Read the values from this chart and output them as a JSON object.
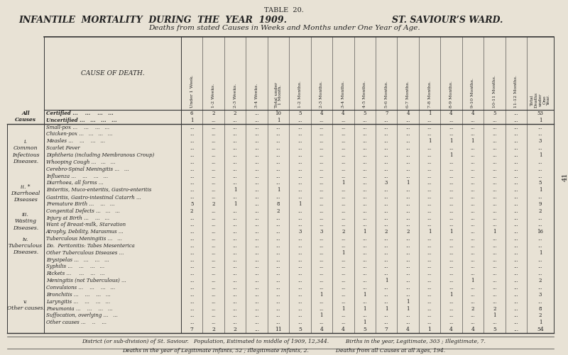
{
  "title1": "TABLE  20.",
  "title2": "INFANTILE  MORTALITY  DURING  THE  YEAR  1909.",
  "title3": "ST. SAVIOUR’S WARD.",
  "title4": "Deaths from stated Causes in Weeks and Months under One Year of Age.",
  "col_headers": [
    "Under 1 Week.",
    "1-2 Weeks.",
    "2-3 Weeks.",
    "3-4 Weeks.",
    "Total under\n1 Month.",
    "1-2 Months.",
    "2-3 Months.",
    "3-4 Months.",
    "4-5 Months.",
    "5-6 Months.",
    "6-7 Months.",
    "7-8 Months.",
    "8-9 Months.",
    "9-10 Months.",
    "10-11 Months.",
    "11-12 Months.",
    "Total\nDeaths\nunder\nOne\nYear."
  ],
  "bg_color": "#e8e2d5",
  "text_color": "#222222",
  "row_groups": [
    {
      "group_label": "All\nCauses",
      "rows": [
        {
          "label": "Certified ...    ...    ...   ...",
          "values": [
            "6",
            "2",
            "2",
            "...",
            "10",
            "5",
            "4",
            "4",
            "5",
            "7",
            "4",
            "1",
            "4",
            "4",
            "5",
            "...",
            "53"
          ]
        },
        {
          "label": "Uncertified ...   ...   ...   ...",
          "values": [
            "1",
            "...",
            "...",
            "...",
            "1",
            "...",
            "...",
            "...",
            "...",
            "...",
            "...",
            "...",
            "...",
            "...",
            "...",
            "...",
            "1"
          ]
        }
      ],
      "bold_group": true,
      "bold_rows": true
    },
    {
      "group_label": "i.\nCommon\nInfectious\nDiseases.",
      "rows": [
        {
          "label": "Small-pox ...    ...    ...   ...",
          "values": [
            "...",
            "...",
            "...",
            "...",
            "...",
            "...",
            "...",
            "...",
            "...",
            "...",
            "...",
            "...",
            "...",
            "...",
            "...",
            "...",
            "..."
          ]
        },
        {
          "label": "Chicken-pox ...   ...   ...   ...",
          "values": [
            "...",
            "...",
            "...",
            "...",
            "...",
            "...",
            "...",
            "...",
            "...",
            "...",
            "...",
            "...",
            "...",
            "...",
            "...",
            "...",
            "..."
          ]
        },
        {
          "label": "Measles ...    ...    ...   ...",
          "values": [
            "...",
            "...",
            "...",
            "...",
            "...",
            "...",
            "...",
            "...",
            "...",
            "...",
            "...",
            "1",
            "1",
            "1",
            "...",
            "...",
            "3"
          ]
        },
        {
          "label": "Scarlet Fever",
          "values": [
            "...",
            "...",
            "...",
            "...",
            "...",
            "...",
            "...",
            "...",
            "...",
            "...",
            "...",
            "...",
            "...",
            "...",
            "...",
            "...",
            "..."
          ]
        },
        {
          "label": "Diphtheria (including Membranous Croup)",
          "values": [
            "...",
            "...",
            "...",
            "...",
            "...",
            "...",
            "...",
            "...",
            "...",
            "...",
            "...",
            "...",
            "1",
            "...",
            "...",
            "...",
            "1"
          ]
        },
        {
          "label": "Whooping Cough ...   ...   ...",
          "values": [
            "...",
            "...",
            "...",
            "...",
            "...",
            "...",
            "...",
            "...",
            "...",
            "...",
            "...",
            "...",
            "...",
            "...",
            "...",
            "...",
            "..."
          ]
        },
        {
          "label": "Cerebro-Spinal Meningitis ...   ...",
          "values": [
            "...",
            "...",
            "...",
            "...",
            "...",
            "...",
            "...",
            "...",
            "...",
            "...",
            "...",
            "...",
            "...",
            "...",
            "...",
            "...",
            "..."
          ]
        },
        {
          "label": "Influenza ...    ...    ...   ...",
          "values": [
            "...",
            "...",
            "...",
            "...",
            "...",
            "...",
            "...",
            "...",
            "...",
            "...",
            "...",
            "...",
            "...",
            "...",
            "...",
            "...",
            "..."
          ]
        }
      ],
      "bold_group": false,
      "bold_rows": false
    },
    {
      "group_label": "ii. *\nDiarrhoeal\nDiseases",
      "rows": [
        {
          "label": "Diarrhoea, all forms ...",
          "values": [
            "...",
            "...",
            "...",
            "...",
            "...",
            "...",
            "...",
            "1",
            "...",
            "3",
            "1",
            "...",
            "...",
            "...",
            "...",
            "...",
            "5"
          ]
        },
        {
          "label": "Enteritis, Muco-enteritis, Gastro-enteritis",
          "values": [
            "...",
            "...",
            "1",
            "...",
            "1",
            "...",
            "...",
            "...",
            "...",
            "...",
            "...",
            "...",
            "...",
            "...",
            "...",
            "...",
            "1"
          ]
        },
        {
          "label": "Gastritis, Gastro-intestinal Catarrh ...",
          "values": [
            "...",
            "...",
            "...",
            "...",
            "...",
            "...",
            "...",
            "...",
            "...",
            "...",
            "...",
            "...",
            "...",
            "...",
            "...",
            "...",
            "..."
          ]
        },
        {
          "label": "Premature Birth ...    ...   ...",
          "values": [
            "5",
            "2",
            "1",
            "...",
            "8",
            "1",
            "...",
            "...",
            "...",
            "...",
            "...",
            "...",
            "...",
            "...",
            "...",
            "...",
            "9"
          ]
        }
      ],
      "bold_group": false,
      "bold_rows": false
    },
    {
      "group_label": "iii.\nWasting\nDiseases.",
      "rows": [
        {
          "label": "Congenital Defects ...   ...   ...",
          "values": [
            "2",
            "...",
            "...",
            "...",
            "2",
            "...",
            "...",
            "...",
            "...",
            "...",
            "...",
            "...",
            "...",
            "...",
            "...",
            "...",
            "2"
          ]
        },
        {
          "label": "Injury at Birth ...    ...   ...",
          "values": [
            "...",
            "...",
            "...",
            "...",
            "...",
            "...",
            "...",
            "...",
            "...",
            "...",
            "...",
            "...",
            "...",
            "...",
            "...",
            "...",
            "..."
          ]
        },
        {
          "label": "Want of Breast-milk, Starvation",
          "values": [
            "...",
            "...",
            "...",
            "...",
            "...",
            "...",
            "...",
            "...",
            "...",
            "...",
            "...",
            "...",
            "...",
            "...",
            "...",
            "...",
            "..."
          ]
        },
        {
          "label": "Atrophy, Debility, Marasmus ...",
          "values": [
            "...",
            "...",
            "...",
            "...",
            "...",
            "3",
            "3",
            "2",
            "1",
            "2",
            "2",
            "1",
            "1",
            "...",
            "1",
            "...",
            "16"
          ]
        }
      ],
      "bold_group": false,
      "bold_rows": false
    },
    {
      "group_label": "iv.\nTuberculous\nDiseases.",
      "rows": [
        {
          "label": "Tuberculous Meningitis ...   ...",
          "values": [
            "...",
            "...",
            "...",
            "...",
            "...",
            "...",
            "...",
            "...",
            "...",
            "...",
            "...",
            "...",
            "...",
            "...",
            "...",
            "...",
            "..."
          ]
        },
        {
          "label": "Do.  Peritonitis: Tabes Mesenterica",
          "values": [
            "...",
            "...",
            "...",
            "...",
            "...",
            "...",
            "...",
            "...",
            "...",
            "...",
            "...",
            "...",
            "...",
            "...",
            "...",
            "...",
            "..."
          ]
        },
        {
          "label": "Other Tuberculous Diseases ...",
          "values": [
            "...",
            "...",
            "...",
            "...",
            "...",
            "...",
            "...",
            "1",
            "...",
            "...",
            "...",
            "...",
            "...",
            "...",
            "...",
            "...",
            "1"
          ]
        }
      ],
      "bold_group": false,
      "bold_rows": false
    },
    {
      "group_label": "",
      "rows": [
        {
          "label": "Erysipelas ...   ...    ...   ...",
          "values": [
            "...",
            "...",
            "...",
            "...",
            "...",
            "...",
            "...",
            "...",
            "...",
            "...",
            "...",
            "...",
            "...",
            "...",
            "...",
            "...",
            "..."
          ]
        },
        {
          "label": "Syphilis ...    ...    ...   ...",
          "values": [
            "...",
            "...",
            "...",
            "...",
            "...",
            "...",
            "...",
            "...",
            "...",
            "...",
            "...",
            "...",
            "...",
            "...",
            "...",
            "...",
            "..."
          ]
        },
        {
          "label": "Rickets ...     ...    ...   ...",
          "values": [
            "...",
            "...",
            "...",
            "...",
            "...",
            "...",
            "...",
            "...",
            "...",
            "...",
            "...",
            "...",
            "...",
            "...",
            "...",
            "...",
            "..."
          ]
        },
        {
          "label": "Meningitis (not Tuberculous) ...",
          "values": [
            "...",
            "...",
            "...",
            "...",
            "...",
            "...",
            "...",
            "...",
            "...",
            "1",
            "...",
            "...",
            "...",
            "1",
            "...",
            "...",
            "2"
          ]
        }
      ],
      "bold_group": false,
      "bold_rows": false
    },
    {
      "group_label": "v.\nOther causes.",
      "rows": [
        {
          "label": "Convulsions ...    ...    ...   ...",
          "values": [
            "...",
            "...",
            "...",
            "...",
            "...",
            "...",
            "...",
            "...",
            "...",
            "...",
            "...",
            "...",
            "...",
            "...",
            "...",
            "...",
            "..."
          ]
        },
        {
          "label": "Bronchitis ...    ...    ...   ...",
          "values": [
            "...",
            "...",
            "...",
            "...",
            "...",
            "...",
            "1",
            "...",
            "1",
            "...",
            "...",
            "...",
            "1",
            "...",
            "...",
            "...",
            "3"
          ]
        },
        {
          "label": "Laryngitis ...    ...    ...   ...",
          "values": [
            "...",
            "...",
            "...",
            "...",
            "...",
            "...",
            "...",
            "...",
            "...",
            "...",
            "1",
            "...",
            "...",
            "...",
            "...",
            "...",
            "..."
          ]
        },
        {
          "label": "Pneumonia ...    ...    ...   ...",
          "values": [
            "...",
            "...",
            "...",
            "...",
            "...",
            "...",
            "...",
            "1",
            "1",
            "1",
            "1",
            "...",
            "...",
            "2",
            "2",
            "...",
            "8"
          ]
        },
        {
          "label": "Suffocation, overlying ...   ...",
          "values": [
            "...",
            "...",
            "...",
            "...",
            "...",
            "...",
            "1",
            "...",
            "...",
            "...",
            "...",
            "...",
            "...",
            "...",
            "1",
            "...",
            "2"
          ]
        },
        {
          "label": "Other causes ...    ..    ...",
          "values": [
            "...",
            "...",
            "...",
            "...",
            "...",
            "...",
            "...",
            "...",
            "1",
            "...",
            "...",
            "...",
            "...",
            "...",
            "...",
            "...",
            "1"
          ]
        }
      ],
      "bold_group": false,
      "bold_rows": false
    }
  ],
  "total_row": [
    "7",
    "2",
    "2",
    "...",
    "11",
    "5",
    "4",
    "4",
    "5",
    "7",
    "4",
    "1",
    "4",
    "4",
    "5",
    "...",
    "54"
  ],
  "footer1": "District (or sub-division) of St. Saviour.   Population, Estimated to middle of 1909, 12,344.          Births in the year, Legitimate, 303 ; Illegitimate, 7.",
  "footer2": "Deaths in the year of Legitimate Infants, 52 ; Illegitimate Infants, 2.                Deaths from all Causes at all Ages, 194.",
  "page_number": "41"
}
